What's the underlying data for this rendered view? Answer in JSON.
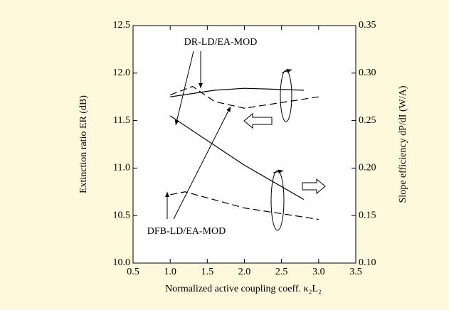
{
  "chart_data": {
    "type": "line",
    "x_label": "Normalized active coupling coeff. κ₂L₂",
    "y_label": "Extinction ratio ER (dB)",
    "y2_label": "Slope efficiency dP/dI (W/A)",
    "annotations": [
      "DR-LD/EA-MOD",
      "DFB-LD/EA-MOD"
    ],
    "xlim": [
      0.5,
      3.5
    ],
    "xticks": [
      0.5,
      {
        "value": 1.0,
        "label": "1.0"
      },
      1.5,
      {
        "value": 2.0,
        "label": "2.0"
      },
      2.5,
      {
        "value": 3.0,
        "label": "3.0"
      },
      3.5
    ],
    "ylim": [
      10.0,
      12.5
    ],
    "yticks": [
      {
        "value": 10.0,
        "label": "10.0"
      },
      10.5,
      {
        "value": 11.0,
        "label": "11.0"
      },
      11.5,
      {
        "value": 12.0,
        "label": "12.0"
      },
      12.5
    ],
    "y2lim": [
      0.1,
      0.35
    ],
    "y2ticks": [
      {
        "value": 0.1,
        "label": "0.10"
      },
      0.15,
      {
        "value": 0.2,
        "label": "0.20"
      },
      0.25,
      {
        "value": 0.3,
        "label": "0.30"
      },
      0.35
    ],
    "series": [
      {
        "color": "#000000",
        "dash": false,
        "x": [
          1.0,
          1.6,
          2.0,
          2.8
        ],
        "values": [
          11.75,
          11.82,
          11.84,
          11.82
        ]
      },
      {
        "color": "#000000",
        "dash": true,
        "x": [
          1.0,
          1.3,
          1.6,
          2.0,
          3.0
        ],
        "values": [
          11.77,
          11.86,
          11.7,
          11.63,
          11.75
        ]
      },
      {
        "color": "#000000",
        "dash": false,
        "axis": "y2",
        "x": [
          1.0,
          2.0,
          2.8
        ],
        "values": [
          0.255,
          0.203,
          0.167
        ]
      },
      {
        "color": "#000000",
        "dash": true,
        "axis": "y2",
        "x": [
          1.0,
          1.2,
          2.0,
          3.0
        ],
        "values": [
          0.172,
          0.175,
          0.158,
          0.146
        ]
      }
    ]
  }
}
